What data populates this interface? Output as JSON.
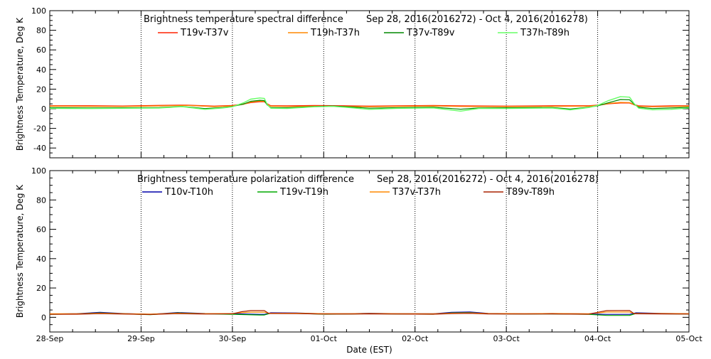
{
  "chart_data": [
    {
      "type": "line",
      "title": "Brightness temperature spectral difference",
      "date_range": "Sep 28, 2016(2016272) - Oct  4, 2016(2016278)",
      "ylabel": "Brightness Temperature, Deg K",
      "xlabel": "",
      "ylim": [
        -50,
        100
      ],
      "yticks": [
        -40,
        -20,
        0,
        20,
        40,
        60,
        80,
        100
      ],
      "xlim": [
        "2016-09-28",
        "2016-10-05"
      ],
      "x_tick_labels": [
        "28-Sep",
        "29-Sep",
        "30-Sep",
        "01-Oct",
        "02-Oct",
        "03-Oct",
        "04-Oct",
        "05-Oct"
      ],
      "show_x_tick_labels": false,
      "grid": "vertical dotted lines at each day",
      "legend_position": "top",
      "series": [
        {
          "name": "T19v-T37v",
          "color": "#ff2200",
          "width": 1.6,
          "points": [
            [
              0,
              3
            ],
            [
              0.4,
              3
            ],
            [
              0.8,
              2.7
            ],
            [
              1.2,
              3.3
            ],
            [
              1.5,
              3.6
            ],
            [
              1.8,
              2.6
            ],
            [
              2.0,
              3.2
            ],
            [
              2.12,
              4.8
            ],
            [
              2.2,
              6.4
            ],
            [
              2.3,
              7.3
            ],
            [
              2.35,
              7.3
            ],
            [
              2.38,
              5
            ],
            [
              2.42,
              3
            ],
            [
              2.6,
              2.8
            ],
            [
              2.9,
              3.2
            ],
            [
              3.2,
              3
            ],
            [
              3.5,
              2.6
            ],
            [
              3.8,
              2.9
            ],
            [
              4.2,
              3.2
            ],
            [
              4.5,
              2.8
            ],
            [
              5.0,
              2.6
            ],
            [
              5.5,
              3
            ],
            [
              5.9,
              3
            ],
            [
              6.0,
              3.6
            ],
            [
              6.12,
              5.2
            ],
            [
              6.25,
              6
            ],
            [
              6.35,
              6
            ],
            [
              6.4,
              4.2
            ],
            [
              6.45,
              2.8
            ],
            [
              6.6,
              2.5
            ],
            [
              6.8,
              2.8
            ],
            [
              7.0,
              3
            ]
          ]
        },
        {
          "name": "T19h-T37h",
          "color": "#ff8800",
          "width": 1.2,
          "points": [
            [
              0,
              2.6
            ],
            [
              0.4,
              2.5
            ],
            [
              0.8,
              2.3
            ],
            [
              1.2,
              2.9
            ],
            [
              1.5,
              3.4
            ],
            [
              1.8,
              2.2
            ],
            [
              2.0,
              2.9
            ],
            [
              2.12,
              4.5
            ],
            [
              2.2,
              6.8
            ],
            [
              2.3,
              7.8
            ],
            [
              2.35,
              7.6
            ],
            [
              2.38,
              4.6
            ],
            [
              2.42,
              2.6
            ],
            [
              2.6,
              2.3
            ],
            [
              2.9,
              2.7
            ],
            [
              3.2,
              2.5
            ],
            [
              3.5,
              2.1
            ],
            [
              3.8,
              2.5
            ],
            [
              4.2,
              2.8
            ],
            [
              4.5,
              2.3
            ],
            [
              5.0,
              2.2
            ],
            [
              5.5,
              2.5
            ],
            [
              5.9,
              2.6
            ],
            [
              6.0,
              3.3
            ],
            [
              6.12,
              5.4
            ],
            [
              6.25,
              6.5
            ],
            [
              6.35,
              6.3
            ],
            [
              6.4,
              4.1
            ],
            [
              6.45,
              2.4
            ],
            [
              6.6,
              2
            ],
            [
              6.8,
              2.3
            ],
            [
              7.0,
              2.6
            ]
          ]
        },
        {
          "name": "T37v-T89v",
          "color": "#008800",
          "width": 1.2,
          "points": [
            [
              0,
              1.2
            ],
            [
              0.4,
              0.8
            ],
            [
              0.8,
              1
            ],
            [
              1.2,
              1.2
            ],
            [
              1.45,
              2.4
            ],
            [
              1.7,
              0.2
            ],
            [
              1.9,
              1.3
            ],
            [
              2.0,
              2.3
            ],
            [
              2.12,
              4.8
            ],
            [
              2.2,
              7.6
            ],
            [
              2.3,
              8.6
            ],
            [
              2.35,
              8.3
            ],
            [
              2.38,
              4
            ],
            [
              2.42,
              1.2
            ],
            [
              2.6,
              1
            ],
            [
              2.9,
              2.3
            ],
            [
              3.1,
              2.8
            ],
            [
              3.3,
              1.8
            ],
            [
              3.5,
              0.6
            ],
            [
              3.8,
              1.1
            ],
            [
              4.2,
              1.5
            ],
            [
              4.5,
              -0.4
            ],
            [
              4.7,
              0.8
            ],
            [
              5.0,
              1
            ],
            [
              5.5,
              1.3
            ],
            [
              5.7,
              -0.3
            ],
            [
              5.9,
              1.6
            ],
            [
              6.0,
              3
            ],
            [
              6.12,
              6.2
            ],
            [
              6.25,
              9.4
            ],
            [
              6.35,
              9.1
            ],
            [
              6.4,
              4.6
            ],
            [
              6.45,
              1.5
            ],
            [
              6.6,
              0.2
            ],
            [
              6.8,
              0.8
            ],
            [
              7.0,
              1.5
            ]
          ]
        },
        {
          "name": "T37h-T89h",
          "color": "#66ff66",
          "width": 1.4,
          "points": [
            [
              0,
              0.4
            ],
            [
              0.4,
              0.2
            ],
            [
              0.8,
              0.5
            ],
            [
              1.2,
              0.8
            ],
            [
              1.45,
              2.2
            ],
            [
              1.7,
              -0.6
            ],
            [
              1.9,
              0.9
            ],
            [
              2.0,
              2
            ],
            [
              2.12,
              6
            ],
            [
              2.2,
              9.8
            ],
            [
              2.3,
              11
            ],
            [
              2.35,
              10.6
            ],
            [
              2.38,
              4.6
            ],
            [
              2.42,
              0.6
            ],
            [
              2.6,
              0.3
            ],
            [
              2.9,
              2
            ],
            [
              3.1,
              2.5
            ],
            [
              3.3,
              1.1
            ],
            [
              3.5,
              -0.6
            ],
            [
              3.8,
              0.4
            ],
            [
              4.2,
              0.9
            ],
            [
              4.5,
              -2.4
            ],
            [
              4.7,
              0.3
            ],
            [
              5.0,
              0.3
            ],
            [
              5.5,
              0.8
            ],
            [
              5.7,
              -1.1
            ],
            [
              5.9,
              1.2
            ],
            [
              6.0,
              3.4
            ],
            [
              6.12,
              8.4
            ],
            [
              6.25,
              12.4
            ],
            [
              6.35,
              11.8
            ],
            [
              6.4,
              5.2
            ],
            [
              6.45,
              0.6
            ],
            [
              6.6,
              -1
            ],
            [
              6.8,
              -0.6
            ],
            [
              7.0,
              0.8
            ]
          ]
        }
      ]
    },
    {
      "type": "line",
      "title": "Brightness temperature polarization difference",
      "date_range": "Sep 28, 2016(2016272) - Oct  4, 2016(2016278)",
      "ylabel": "Brightness Temperature, Deg K",
      "xlabel": "Date (EST)",
      "ylim": [
        -10,
        100
      ],
      "yticks": [
        0,
        20,
        40,
        60,
        80,
        100
      ],
      "xlim": [
        "2016-09-28",
        "2016-10-05"
      ],
      "x_tick_labels": [
        "28-Sep",
        "29-Sep",
        "30-Sep",
        "01-Oct",
        "02-Oct",
        "03-Oct",
        "04-Oct",
        "05-Oct"
      ],
      "show_x_tick_labels": true,
      "grid": "vertical dotted lines at each day",
      "legend_position": "top",
      "series": [
        {
          "name": "T10v-T10h",
          "color": "#0000aa",
          "width": 1.2,
          "points": [
            [
              0,
              2.2
            ],
            [
              0.3,
              2.5
            ],
            [
              0.55,
              3.4
            ],
            [
              0.8,
              2.6
            ],
            [
              1.1,
              2
            ],
            [
              1.4,
              3.3
            ],
            [
              1.7,
              2.6
            ],
            [
              2.0,
              2.5
            ],
            [
              2.3,
              2
            ],
            [
              2.35,
              2
            ],
            [
              2.42,
              3.1
            ],
            [
              2.7,
              3
            ],
            [
              3.0,
              2.4
            ],
            [
              3.3,
              2.5
            ],
            [
              3.5,
              2.8
            ],
            [
              3.8,
              2.5
            ],
            [
              4.2,
              2.4
            ],
            [
              4.4,
              3.4
            ],
            [
              4.6,
              3.6
            ],
            [
              4.8,
              2.7
            ],
            [
              5.2,
              2.4
            ],
            [
              5.5,
              2.6
            ],
            [
              5.9,
              2.3
            ],
            [
              6.1,
              2
            ],
            [
              6.35,
              2
            ],
            [
              6.42,
              3.1
            ],
            [
              6.7,
              2.7
            ],
            [
              7.0,
              2.5
            ]
          ]
        },
        {
          "name": "T19v-T19h",
          "color": "#00aa00",
          "width": 1.2,
          "points": [
            [
              0,
              2
            ],
            [
              0.3,
              2.3
            ],
            [
              0.55,
              3
            ],
            [
              0.8,
              2.4
            ],
            [
              1.1,
              1.8
            ],
            [
              1.4,
              3
            ],
            [
              1.7,
              2.4
            ],
            [
              2.0,
              2
            ],
            [
              2.3,
              1.6
            ],
            [
              2.35,
              1.6
            ],
            [
              2.42,
              2.8
            ],
            [
              2.7,
              2.7
            ],
            [
              3.0,
              2.1
            ],
            [
              3.3,
              2.2
            ],
            [
              3.5,
              2.5
            ],
            [
              3.8,
              2.2
            ],
            [
              4.2,
              2.1
            ],
            [
              4.4,
              3
            ],
            [
              4.6,
              3.2
            ],
            [
              4.8,
              2.4
            ],
            [
              5.2,
              2.2
            ],
            [
              5.5,
              2.3
            ],
            [
              5.9,
              2
            ],
            [
              6.1,
              1.3
            ],
            [
              6.35,
              1.3
            ],
            [
              6.42,
              2.6
            ],
            [
              6.7,
              2.4
            ],
            [
              7.0,
              2.2
            ]
          ]
        },
        {
          "name": "T37v-T37h",
          "color": "#ff8800",
          "width": 1.2,
          "points": [
            [
              0,
              2.4
            ],
            [
              0.3,
              2.4
            ],
            [
              0.55,
              2.8
            ],
            [
              0.8,
              2.5
            ],
            [
              1.1,
              2.2
            ],
            [
              1.4,
              2.8
            ],
            [
              1.7,
              2.5
            ],
            [
              2.0,
              2.6
            ],
            [
              2.1,
              3.2
            ],
            [
              2.2,
              3.5
            ],
            [
              2.35,
              3.5
            ],
            [
              2.4,
              2.8
            ],
            [
              2.7,
              2.8
            ],
            [
              3.0,
              2.5
            ],
            [
              3.3,
              2.5
            ],
            [
              3.5,
              2.6
            ],
            [
              3.8,
              2.5
            ],
            [
              4.2,
              2.4
            ],
            [
              4.4,
              2.8
            ],
            [
              4.6,
              3
            ],
            [
              4.8,
              2.6
            ],
            [
              5.2,
              2.5
            ],
            [
              5.5,
              2.6
            ],
            [
              5.9,
              2.4
            ],
            [
              6.0,
              3
            ],
            [
              6.1,
              3.6
            ],
            [
              6.35,
              3.6
            ],
            [
              6.4,
              2.7
            ],
            [
              6.7,
              2.6
            ],
            [
              7.0,
              2.5
            ]
          ]
        },
        {
          "name": "T89v-T89h",
          "color": "#aa2200",
          "width": 1.2,
          "points": [
            [
              0,
              2
            ],
            [
              0.3,
              2.1
            ],
            [
              0.55,
              2.5
            ],
            [
              0.8,
              2.2
            ],
            [
              1.1,
              1.9
            ],
            [
              1.4,
              2.5
            ],
            [
              1.7,
              2.2
            ],
            [
              2.0,
              2.4
            ],
            [
              2.1,
              3.8
            ],
            [
              2.2,
              4.6
            ],
            [
              2.35,
              4.6
            ],
            [
              2.4,
              2.6
            ],
            [
              2.7,
              2.5
            ],
            [
              3.0,
              2.2
            ],
            [
              3.3,
              2.2
            ],
            [
              3.5,
              2.3
            ],
            [
              3.8,
              2.2
            ],
            [
              4.2,
              2.1
            ],
            [
              4.4,
              2.5
            ],
            [
              4.6,
              2.7
            ],
            [
              4.8,
              2.3
            ],
            [
              5.2,
              2.2
            ],
            [
              5.5,
              2.3
            ],
            [
              5.9,
              2.1
            ],
            [
              6.0,
              3.4
            ],
            [
              6.1,
              4.6
            ],
            [
              6.35,
              4.7
            ],
            [
              6.4,
              2.4
            ],
            [
              6.7,
              2.3
            ],
            [
              7.0,
              2.2
            ]
          ]
        }
      ]
    }
  ]
}
